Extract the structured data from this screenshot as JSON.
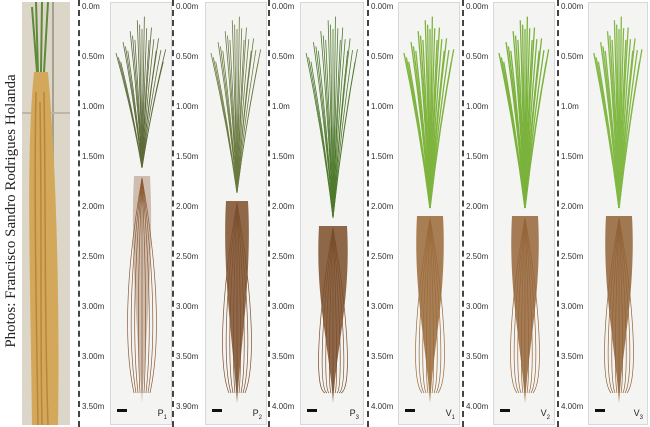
{
  "credit": "Photos: Francisco Sandro Rodrigues Holanda",
  "scales": [
    {
      "ticks": [
        "0.0m",
        "0.50m",
        "1.00m",
        "1.50m",
        "2.00m",
        "2.50m",
        "3.00m",
        "3.00m",
        "3.50m"
      ]
    },
    {
      "ticks": [
        "0.00m",
        "0.50m",
        "1.00m",
        "1.50m",
        "2.00m",
        "2.50m",
        "3.00m",
        "3.50m",
        "3.90m"
      ]
    },
    {
      "ticks": [
        "0.00m",
        "0.50m",
        "1.0m",
        "1.50m",
        "2.00m",
        "2.50m",
        "3.00m",
        "3.50m",
        "4.00m"
      ]
    },
    {
      "ticks": [
        "0.00m",
        "0.50m",
        "1.00m",
        "1.50m",
        "2.00m",
        "2.50m",
        "3.00m",
        "3.50m",
        "4.00m"
      ]
    },
    {
      "ticks": [
        "0.00m",
        "0.50m",
        "1.00m",
        "1.50m",
        "2.00m",
        "2.50m",
        "3.00m",
        "3.50m",
        "4.00m"
      ]
    },
    {
      "ticks": [
        "0.00m",
        "0.50m",
        "1.0m",
        "1.50m",
        "2.00m",
        "2.50m",
        "3.00m",
        "3.50m",
        "4.00m"
      ]
    }
  ],
  "panels": [
    {
      "label": "P",
      "sub": "1",
      "leaf_color": "#5d6b3a",
      "root_color": "#8a5a34"
    },
    {
      "label": "P",
      "sub": "2",
      "leaf_color": "#6a7a40",
      "root_color": "#7d4f2c"
    },
    {
      "label": "P",
      "sub": "3",
      "leaf_color": "#4f7a2e",
      "root_color": "#7a4d2a"
    },
    {
      "label": "V",
      "sub": "1",
      "leaf_color": "#7fb43f",
      "root_color": "#9a6a3a"
    },
    {
      "label": "V",
      "sub": "2",
      "leaf_color": "#7ab23c",
      "root_color": "#956538"
    },
    {
      "label": "V",
      "sub": "3",
      "leaf_color": "#82b845",
      "root_color": "#916236"
    }
  ]
}
